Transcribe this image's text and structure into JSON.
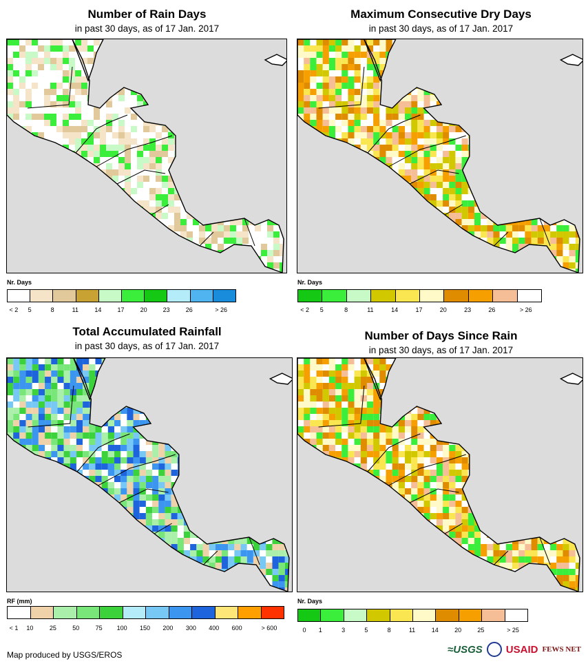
{
  "panels": [
    {
      "title": "Number of Rain Days",
      "subtitle": "in past 30 days, as of 17 Jan. 2017",
      "legend_title": "Nr. Days",
      "legend_colors": [
        "#ffffff",
        "#f5e4c8",
        "#e2c99b",
        "#c8a233",
        "#c8fac8",
        "#3cee3c",
        "#14c814",
        "#b4ecfa",
        "#50b4f0",
        "#1a8cdc"
      ],
      "legend_labels": [
        "< 2",
        "5",
        "8",
        "11",
        "14",
        "17",
        "20",
        "23",
        "26",
        "> 26"
      ],
      "legend_label_mode": "edges"
    },
    {
      "title": "Maximum Consecutive Dry Days",
      "subtitle": "in past 30 days, as of 17 Jan. 2017",
      "legend_title": "Nr. Days",
      "legend_colors": [
        "#14c814",
        "#3cee3c",
        "#c8fac8",
        "#d2c800",
        "#fae650",
        "#fffac8",
        "#e08c00",
        "#f5a000",
        "#f5be96",
        "#ffffff"
      ],
      "legend_labels": [
        "< 2",
        "5",
        "8",
        "11",
        "14",
        "17",
        "20",
        "23",
        "26",
        "> 26"
      ],
      "legend_label_mode": "edges"
    },
    {
      "title": "Total Accumulated Rainfall",
      "subtitle": "in past 30 days, as of 17 Jan. 2017",
      "legend_title": "RF (mm)",
      "legend_colors": [
        "#ffffff",
        "#f0d2aa",
        "#aaf0aa",
        "#78e678",
        "#3cd23c",
        "#b4ecfa",
        "#78c8f5",
        "#3c96f0",
        "#1e64dc",
        "#ffe678",
        "#ffa000",
        "#ff3200"
      ],
      "legend_labels": [
        "< 1",
        "10",
        "25",
        "50",
        "75",
        "100",
        "150",
        "200",
        "300",
        "400",
        "600",
        "> 600"
      ],
      "legend_label_mode": "edges"
    },
    {
      "title": "Number of Days Since Rain",
      "subtitle": "in past 30 days, as of 17 Jan. 2017",
      "legend_title": "Nr. Days",
      "legend_colors": [
        "#14c814",
        "#3cee3c",
        "#c8fac8",
        "#d2c800",
        "#fae650",
        "#fffac8",
        "#e08c00",
        "#f5a000",
        "#f5be96",
        "#ffffff"
      ],
      "legend_labels": [
        "0",
        "1",
        "3",
        "5",
        "8",
        "11",
        "14",
        "20",
        "25",
        "> 25"
      ],
      "legend_label_mode": "edges"
    }
  ],
  "credit": "Map produced by USGS/EROS",
  "logos": {
    "usgs": "≈USGS",
    "usaid": "USAID",
    "fews": "FEWS NET"
  },
  "land_color": "#ffffff",
  "ocean_color": "#dcdcdc"
}
